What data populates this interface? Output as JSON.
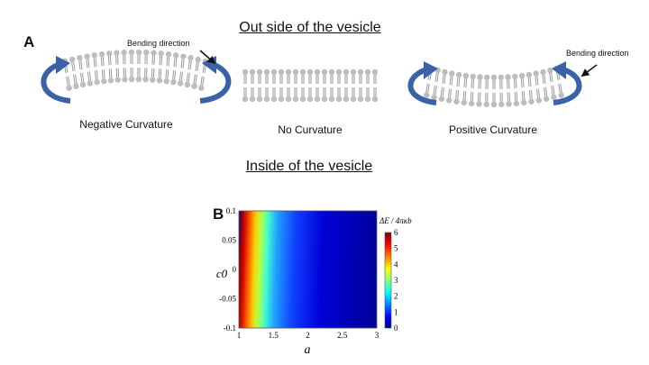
{
  "titles": {
    "outside": "Out side of the vesicle",
    "inside": "Inside of the vesicle"
  },
  "panels": {
    "a_label": "A",
    "b_label": "B"
  },
  "membranes": {
    "negative": {
      "caption": "Negative Curvature",
      "arrow_label": "Bending direction"
    },
    "none": {
      "caption": "No Curvature"
    },
    "positive": {
      "caption": "Positive Curvature",
      "arrow_label": "Bending direction"
    }
  },
  "colors": {
    "arrow_blue": "#3a62a8",
    "lipid_head": "#bdbdbd",
    "lipid_tail": "#9a9a9a"
  },
  "chart_data": {
    "type": "heatmap",
    "xlabel": "a",
    "ylabel": "c0",
    "colorbar_label": "ΔE / 4πκb",
    "x_ticks": [
      "1",
      "1.5",
      "2",
      "2.5",
      "3"
    ],
    "y_ticks": [
      "0.1",
      "0.05",
      "0",
      "-0.05",
      "-0.1"
    ],
    "colorbar_ticks": [
      "6",
      "5",
      "4",
      "3",
      "2",
      "1",
      "0"
    ],
    "xlim": [
      1,
      3
    ],
    "ylim": [
      -0.1,
      0.1
    ],
    "clim": [
      0,
      6
    ],
    "colormap": "jet"
  }
}
